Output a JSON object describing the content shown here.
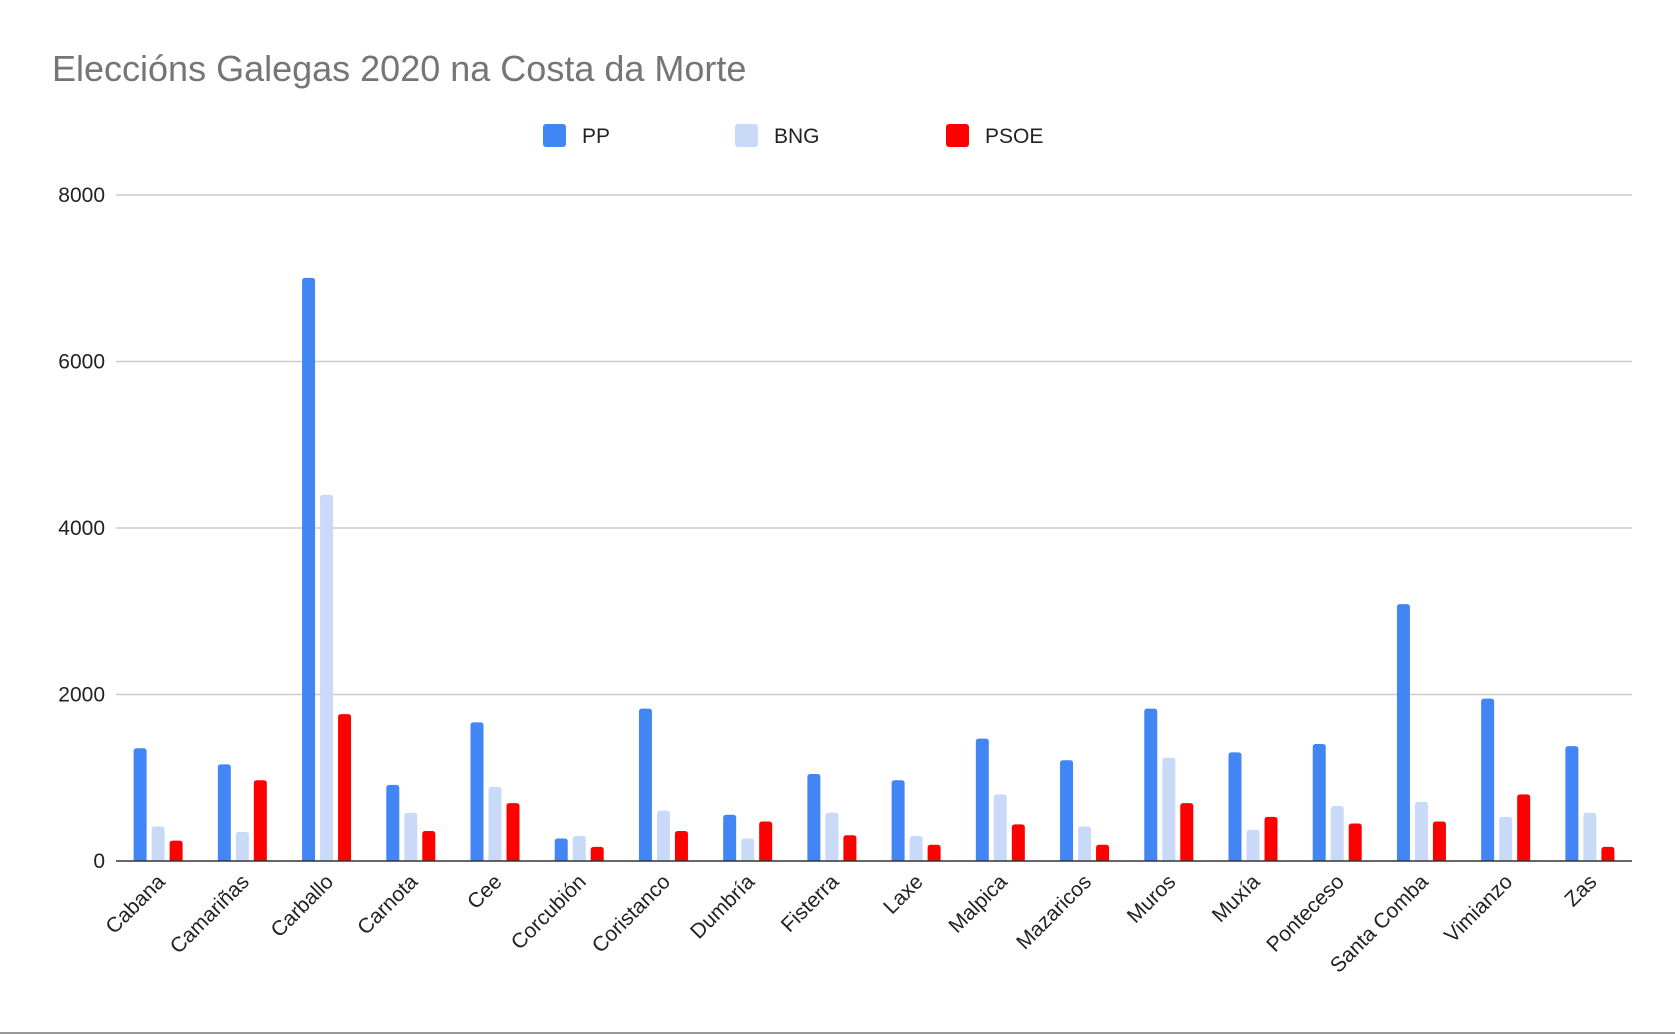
{
  "chart_data": {
    "type": "bar",
    "title": "Eleccións Galegas 2020 na Costa da Morte",
    "xlabel": "",
    "ylabel": "",
    "ylim": [
      0,
      8000
    ],
    "yticks": [
      0,
      2000,
      4000,
      6000,
      8000
    ],
    "grid": true,
    "legend_position": "top",
    "categories": [
      "Cabana",
      "Camariñas",
      "Carballo",
      "Carnota",
      "Cee",
      "Corcubión",
      "Coristanco",
      "Dumbría",
      "Fisterra",
      "Laxe",
      "Malpica",
      "Mazaricos",
      "Muros",
      "Muxía",
      "Ponteceso",
      "Santa Comba",
      "Vimianzo",
      "Zas"
    ],
    "series": [
      {
        "name": "PP",
        "color": "#4285f4",
        "values": [
          1355,
          1160,
          7005,
          915,
          1665,
          270,
          1830,
          555,
          1045,
          970,
          1470,
          1210,
          1830,
          1305,
          1405,
          3085,
          1950,
          1380
        ]
      },
      {
        "name": "BNG",
        "color": "#c9daf8",
        "values": [
          415,
          350,
          4400,
          580,
          890,
          300,
          605,
          270,
          580,
          300,
          800,
          415,
          1240,
          375,
          660,
          710,
          530,
          580
        ]
      },
      {
        "name": "PSOE",
        "color": "#ff0000",
        "values": [
          245,
          970,
          1765,
          360,
          695,
          170,
          360,
          475,
          310,
          195,
          440,
          195,
          695,
          530,
          450,
          475,
          800,
          170
        ]
      }
    ]
  }
}
